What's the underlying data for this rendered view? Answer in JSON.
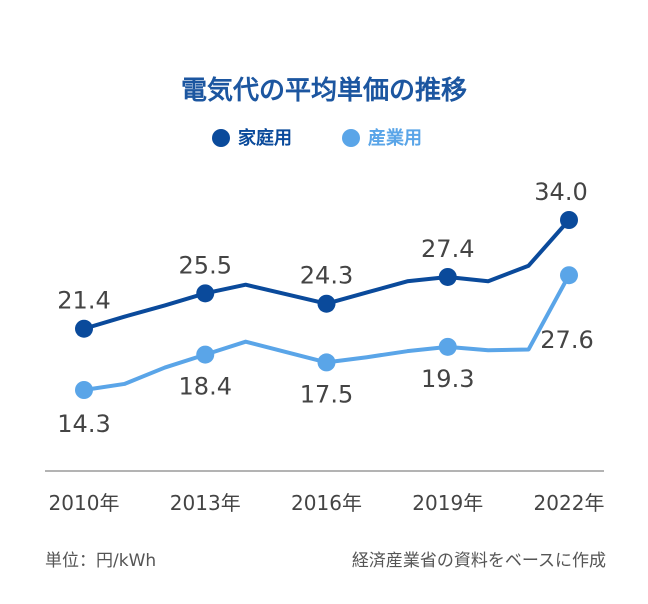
{
  "chart_data": {
    "type": "line",
    "title": "電気代の平均単価の推移",
    "categories": [
      "2010年",
      "2013年",
      "2016年",
      "2019年",
      "2022年"
    ],
    "x": [
      2010,
      2011,
      2012,
      2013,
      2014,
      2015,
      2016,
      2017,
      2018,
      2019,
      2020,
      2021,
      2022
    ],
    "series": [
      {
        "name": "家庭用",
        "color": "#0a4a9b",
        "values": [
          21.4,
          22.8,
          24.1,
          25.5,
          26.5,
          25.4,
          24.3,
          25.6,
          26.9,
          27.4,
          26.9,
          28.7,
          34.0
        ],
        "labeled": [
          {
            "x": 2010,
            "text": "21.4"
          },
          {
            "x": 2013,
            "text": "25.5"
          },
          {
            "x": 2016,
            "text": "24.3"
          },
          {
            "x": 2019,
            "text": "27.4"
          },
          {
            "x": 2022,
            "text": "34.0"
          }
        ]
      },
      {
        "name": "産業用",
        "color": "#5aa5e8",
        "values": [
          14.3,
          15.0,
          16.9,
          18.4,
          19.9,
          18.7,
          17.5,
          18.1,
          18.8,
          19.3,
          18.9,
          19.0,
          27.6
        ],
        "labeled": [
          {
            "x": 2010,
            "text": "14.3"
          },
          {
            "x": 2013,
            "text": "18.4"
          },
          {
            "x": 2016,
            "text": "17.5"
          },
          {
            "x": 2019,
            "text": "19.3"
          },
          {
            "x": 2022,
            "text": "27.6"
          }
        ]
      }
    ],
    "unit_note": "単位：円/kWh",
    "source_note": "経済産業省の資料をベースに作成",
    "grid": false,
    "legend_position": "top-center"
  }
}
